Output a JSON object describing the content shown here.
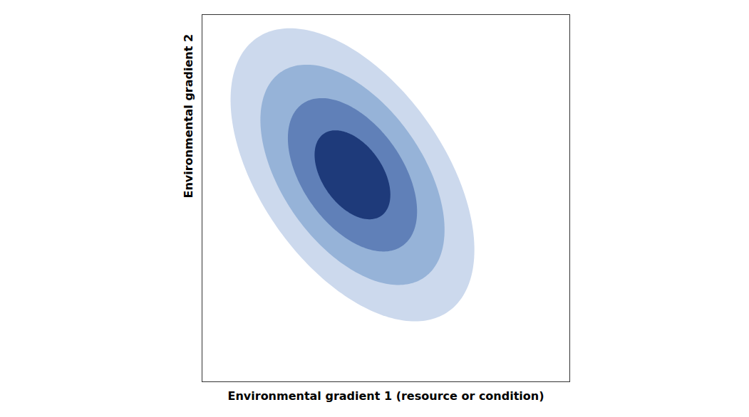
{
  "chart_data": {
    "type": "ellipses",
    "xlabel": "Environmental gradient 1 (resource or condition)",
    "ylabel": "Environmental gradient 2",
    "center_x": 4.5,
    "center_y": 6.2,
    "ellipses": [
      {
        "width": 5.5,
        "height": 10.0,
        "angle": 35,
        "color": "#ccd9ed"
      },
      {
        "width": 4.2,
        "height": 7.5,
        "angle": 35,
        "color": "#96b3d8"
      },
      {
        "width": 3.0,
        "height": 5.2,
        "angle": 35,
        "color": "#6080b8"
      },
      {
        "width": 1.8,
        "height": 3.0,
        "angle": 35,
        "color": "#1e3a7a"
      }
    ],
    "xlim": [
      0,
      11
    ],
    "ylim": [
      0,
      11
    ],
    "xticks": [],
    "yticks": [],
    "tick_labels": false
  }
}
